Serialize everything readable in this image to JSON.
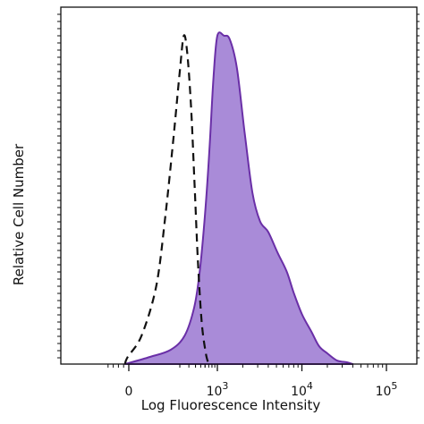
{
  "chart_data": {
    "type": "area",
    "title": "",
    "xlabel": "Log Fluorescence Intensity",
    "ylabel": "Relative Cell Number",
    "x_scale": "biexponential",
    "xlim": [
      -1000,
      150000
    ],
    "ylim": [
      0,
      100
    ],
    "x_ticks": [
      {
        "value": 0,
        "label": "0"
      },
      {
        "value": 1000,
        "label": "10",
        "exp": "3"
      },
      {
        "value": 10000,
        "label": "10",
        "exp": "4"
      },
      {
        "value": 100000,
        "label": "10",
        "exp": "5"
      }
    ],
    "series": [
      {
        "style": "dashed",
        "color": "#111111",
        "x": [
          -150,
          -40,
          20,
          60,
          100,
          150,
          200,
          240,
          280,
          330,
          380,
          440,
          520,
          620,
          700
        ],
        "y": [
          0,
          2,
          8,
          22,
          42,
          64,
          82,
          92,
          87,
          72,
          52,
          30,
          12,
          3,
          0
        ]
      },
      {
        "style": "filled",
        "color": "#6a2fa7",
        "fill": "#a98bd8",
        "x": [
          -150,
          40,
          130,
          250,
          380,
          480,
          600,
          720,
          850,
          1000,
          1200,
          1400,
          1700,
          2100,
          2600,
          3200,
          4000,
          5200,
          6600,
          8000,
          10000,
          13000,
          16000,
          20000,
          26000,
          34000,
          40000
        ],
        "y": [
          0,
          2,
          4,
          8,
          16,
          26,
          42,
          60,
          80,
          92,
          92,
          91,
          83,
          65,
          48,
          40,
          37,
          31,
          26,
          20,
          14,
          9,
          5,
          3,
          1,
          0.5,
          0
        ]
      }
    ]
  }
}
